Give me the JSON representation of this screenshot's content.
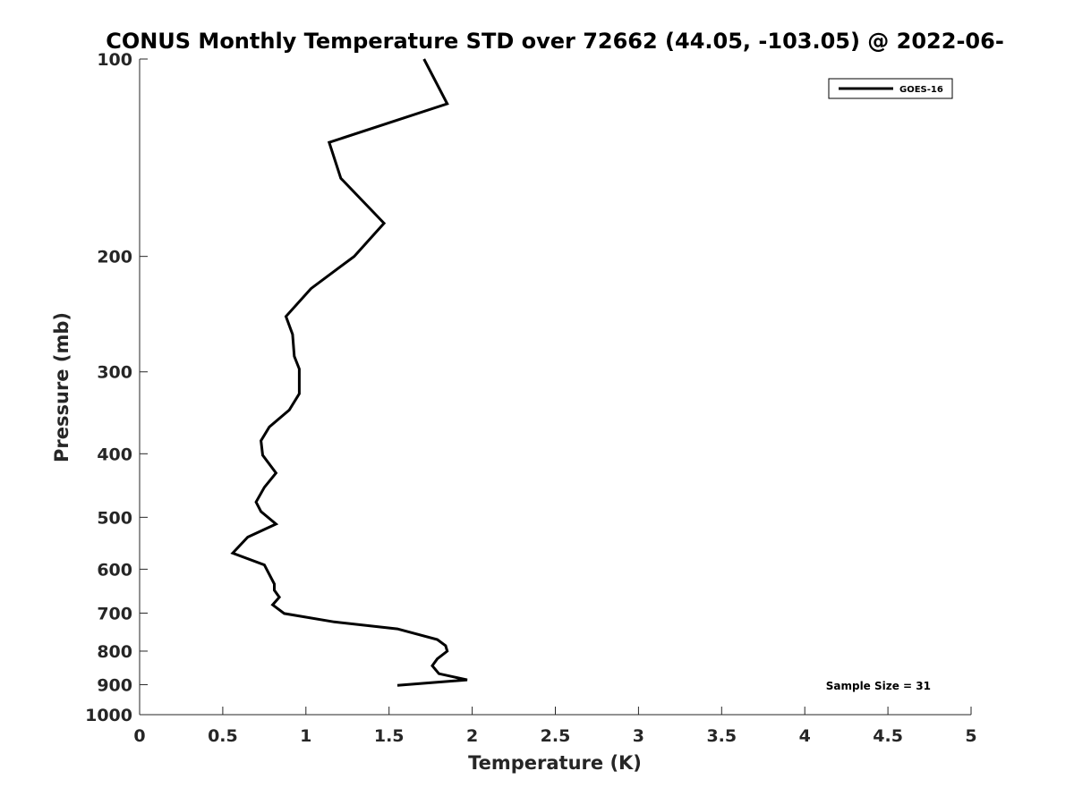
{
  "chart_data": {
    "type": "line",
    "title": "CONUS Monthly Temperature STD over 72662 (44.05, -103.05) @ 2022-06-",
    "xlabel": "Temperature (K)",
    "ylabel": "Pressure (mb)",
    "xlim": [
      0,
      5
    ],
    "ylim": [
      100,
      1000
    ],
    "y_scale": "log",
    "y_reversed": true,
    "grid": false,
    "legend_position": "top-right",
    "x_ticks": [
      0,
      0.5,
      1,
      1.5,
      2,
      2.5,
      3,
      3.5,
      4,
      4.5,
      5
    ],
    "x_tick_labels": [
      "0",
      "0.5",
      "1",
      "1.5",
      "2",
      "2.5",
      "3",
      "3.5",
      "4",
      "4.5",
      "5"
    ],
    "y_ticks": [
      100,
      200,
      300,
      400,
      500,
      600,
      700,
      800,
      900,
      1000
    ],
    "y_tick_labels": [
      "100",
      "200",
      "300",
      "400",
      "500",
      "600",
      "700",
      "800",
      "900",
      "1000"
    ],
    "annotation": "Sample Size = 31",
    "series": [
      {
        "name": "GOES-16",
        "color": "#000000",
        "points": [
          {
            "x": 1.71,
            "y": 100
          },
          {
            "x": 1.85,
            "y": 117
          },
          {
            "x": 1.14,
            "y": 134
          },
          {
            "x": 1.21,
            "y": 152
          },
          {
            "x": 1.47,
            "y": 178
          },
          {
            "x": 1.29,
            "y": 200
          },
          {
            "x": 1.03,
            "y": 224
          },
          {
            "x": 0.88,
            "y": 247
          },
          {
            "x": 0.92,
            "y": 263
          },
          {
            "x": 0.93,
            "y": 284
          },
          {
            "x": 0.96,
            "y": 297
          },
          {
            "x": 0.96,
            "y": 324
          },
          {
            "x": 0.9,
            "y": 343
          },
          {
            "x": 0.78,
            "y": 364
          },
          {
            "x": 0.73,
            "y": 382
          },
          {
            "x": 0.74,
            "y": 402
          },
          {
            "x": 0.82,
            "y": 428
          },
          {
            "x": 0.75,
            "y": 450
          },
          {
            "x": 0.7,
            "y": 474
          },
          {
            "x": 0.73,
            "y": 490
          },
          {
            "x": 0.82,
            "y": 512
          },
          {
            "x": 0.65,
            "y": 536
          },
          {
            "x": 0.56,
            "y": 567
          },
          {
            "x": 0.75,
            "y": 591
          },
          {
            "x": 0.81,
            "y": 632
          },
          {
            "x": 0.81,
            "y": 646
          },
          {
            "x": 0.84,
            "y": 662
          },
          {
            "x": 0.8,
            "y": 680
          },
          {
            "x": 0.87,
            "y": 701
          },
          {
            "x": 1.17,
            "y": 722
          },
          {
            "x": 1.55,
            "y": 740
          },
          {
            "x": 1.79,
            "y": 768
          },
          {
            "x": 1.84,
            "y": 785
          },
          {
            "x": 1.85,
            "y": 800
          },
          {
            "x": 1.79,
            "y": 822
          },
          {
            "x": 1.76,
            "y": 842
          },
          {
            "x": 1.8,
            "y": 866
          },
          {
            "x": 1.97,
            "y": 885
          },
          {
            "x": 1.55,
            "y": 902
          }
        ]
      }
    ]
  }
}
